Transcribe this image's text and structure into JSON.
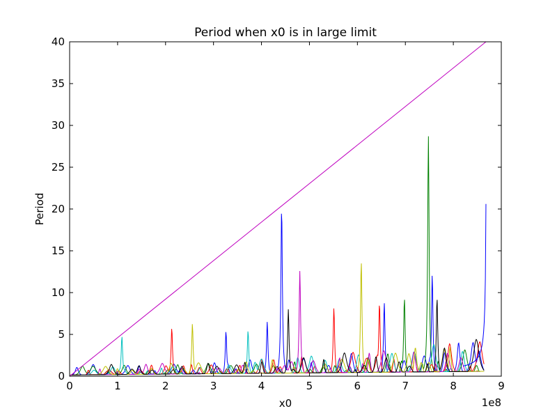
{
  "chart_data": {
    "type": "line",
    "title": "Period when x0 is in large limit",
    "xlabel": "x0",
    "ylabel": "Period",
    "x_offset_text": "1e8",
    "xlim": [
      0,
      9
    ],
    "ylim": [
      0,
      40
    ],
    "xticks": [
      0,
      1,
      2,
      3,
      4,
      5,
      6,
      7,
      8,
      9
    ],
    "yticks": [
      0,
      5,
      10,
      15,
      20,
      25,
      30,
      35,
      40
    ],
    "grid": false,
    "legend": "none",
    "colors": [
      "#0000ff",
      "#008000",
      "#ff0000",
      "#00bfbf",
      "#bf00bf",
      "#bfbf00",
      "#000000"
    ],
    "diagonal_color": "#bf00bf",
    "diagonal_line": {
      "x": [
        0,
        8.68
      ],
      "y": [
        0,
        40
      ]
    },
    "major_peaks": [
      {
        "x": 1.09,
        "y": 4.8,
        "color": "#00bfbf"
      },
      {
        "x": 2.13,
        "y": 5.8,
        "color": "#ff0000"
      },
      {
        "x": 2.56,
        "y": 6.3,
        "color": "#bfbf00"
      },
      {
        "x": 3.26,
        "y": 5.4,
        "color": "#0000ff"
      },
      {
        "x": 3.72,
        "y": 5.5,
        "color": "#00bfbf"
      },
      {
        "x": 4.12,
        "y": 6.5,
        "color": "#0000ff"
      },
      {
        "x": 4.42,
        "y": 20.3,
        "color": "#0000ff"
      },
      {
        "x": 4.56,
        "y": 8.0,
        "color": "#000000"
      },
      {
        "x": 4.8,
        "y": 12.6,
        "color": "#bf00bf"
      },
      {
        "x": 5.51,
        "y": 8.2,
        "color": "#ff0000"
      },
      {
        "x": 6.08,
        "y": 13.8,
        "color": "#bfbf00"
      },
      {
        "x": 6.46,
        "y": 8.8,
        "color": "#ff0000"
      },
      {
        "x": 6.56,
        "y": 8.8,
        "color": "#0000ff"
      },
      {
        "x": 6.98,
        "y": 9.4,
        "color": "#008000"
      },
      {
        "x": 7.48,
        "y": 28.8,
        "color": "#008000"
      },
      {
        "x": 7.56,
        "y": 12.2,
        "color": "#0000ff"
      },
      {
        "x": 7.66,
        "y": 9.4,
        "color": "#000000"
      }
    ],
    "blue_tail": {
      "x": [
        8.3,
        8.5,
        8.6,
        8.65,
        8.68
      ],
      "y": [
        1.0,
        3.0,
        6.0,
        12.0,
        24.2
      ]
    }
  }
}
